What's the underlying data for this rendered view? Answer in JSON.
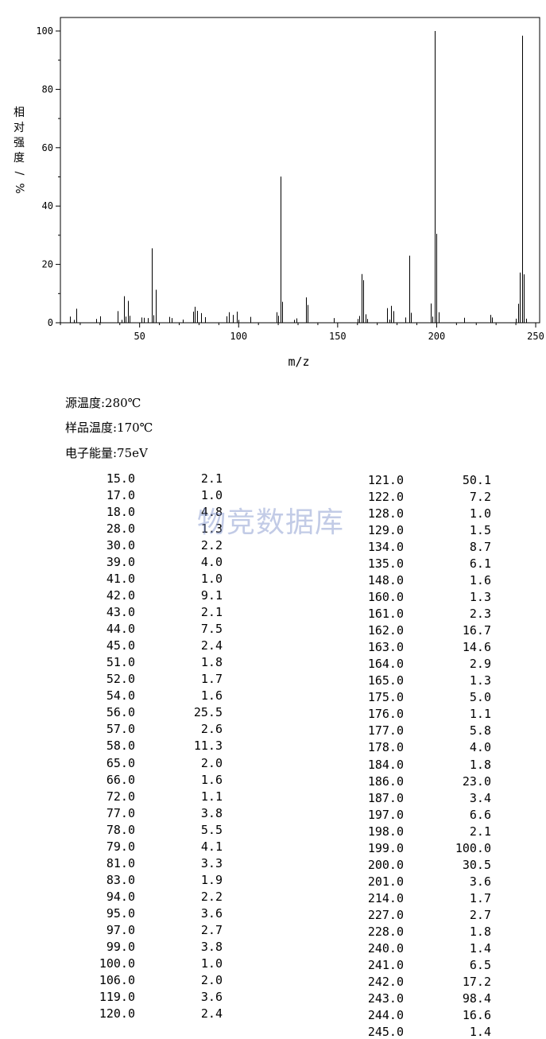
{
  "chart_data": {
    "type": "bar",
    "xlabel": "m/z",
    "ylabel": "相对强度/%",
    "xlim": [
      10,
      252
    ],
    "ylim": [
      0,
      105
    ],
    "xticks": [
      50,
      100,
      150,
      200,
      250
    ],
    "yticks": [
      0,
      20,
      40,
      60,
      80,
      100
    ],
    "x": [
      15,
      17,
      18,
      28,
      30,
      39,
      41,
      42,
      43,
      44,
      45,
      51,
      52,
      54,
      56,
      57,
      58,
      65,
      66,
      72,
      77,
      78,
      79,
      81,
      83,
      94,
      95,
      97,
      99,
      100,
      106,
      119,
      120,
      121,
      122,
      128,
      129,
      134,
      135,
      148,
      160,
      161,
      162,
      163,
      164,
      165,
      175,
      176,
      177,
      178,
      184,
      186,
      187,
      197,
      198,
      199,
      200,
      201,
      214,
      227,
      228,
      240,
      241,
      242,
      243,
      244,
      245
    ],
    "values": [
      2.1,
      1.0,
      4.8,
      1.3,
      2.2,
      4.0,
      1.0,
      9.1,
      2.1,
      7.5,
      2.4,
      1.8,
      1.7,
      1.6,
      25.5,
      2.6,
      11.3,
      2.0,
      1.6,
      1.1,
      3.8,
      5.5,
      4.1,
      3.3,
      1.9,
      2.2,
      3.6,
      2.7,
      3.8,
      1.0,
      2.0,
      3.6,
      2.4,
      50.1,
      7.2,
      1.0,
      1.5,
      8.7,
      6.1,
      1.6,
      1.3,
      2.3,
      16.7,
      14.6,
      2.9,
      1.3,
      5.0,
      1.1,
      5.8,
      4.0,
      1.8,
      23.0,
      3.4,
      6.6,
      2.1,
      100.0,
      30.5,
      3.6,
      1.7,
      2.7,
      1.8,
      1.4,
      6.5,
      17.2,
      98.4,
      16.6,
      1.4
    ],
    "color": "#000000"
  },
  "conditions": [
    "源温度:280℃",
    "样品温度:170℃",
    "电子能量:75eV"
  ],
  "watermark": "物竞数据库",
  "table": {
    "left": [
      [
        "15.0",
        "2.1"
      ],
      [
        "17.0",
        "1.0"
      ],
      [
        "18.0",
        "4.8"
      ],
      [
        "28.0",
        "1.3"
      ],
      [
        "30.0",
        "2.2"
      ],
      [
        "39.0",
        "4.0"
      ],
      [
        "41.0",
        "1.0"
      ],
      [
        "42.0",
        "9.1"
      ],
      [
        "43.0",
        "2.1"
      ],
      [
        "44.0",
        "7.5"
      ],
      [
        "45.0",
        "2.4"
      ],
      [
        "51.0",
        "1.8"
      ],
      [
        "52.0",
        "1.7"
      ],
      [
        "54.0",
        "1.6"
      ],
      [
        "56.0",
        "25.5"
      ],
      [
        "57.0",
        "2.6"
      ],
      [
        "58.0",
        "11.3"
      ],
      [
        "65.0",
        "2.0"
      ],
      [
        "66.0",
        "1.6"
      ],
      [
        "72.0",
        "1.1"
      ],
      [
        "77.0",
        "3.8"
      ],
      [
        "78.0",
        "5.5"
      ],
      [
        "79.0",
        "4.1"
      ],
      [
        "81.0",
        "3.3"
      ],
      [
        "83.0",
        "1.9"
      ],
      [
        "94.0",
        "2.2"
      ],
      [
        "95.0",
        "3.6"
      ],
      [
        "97.0",
        "2.7"
      ],
      [
        "99.0",
        "3.8"
      ],
      [
        "100.0",
        "1.0"
      ],
      [
        "106.0",
        "2.0"
      ],
      [
        "119.0",
        "3.6"
      ],
      [
        "120.0",
        "2.4"
      ]
    ],
    "right": [
      [
        "121.0",
        "50.1"
      ],
      [
        "122.0",
        "7.2"
      ],
      [
        "128.0",
        "1.0"
      ],
      [
        "129.0",
        "1.5"
      ],
      [
        "134.0",
        "8.7"
      ],
      [
        "135.0",
        "6.1"
      ],
      [
        "148.0",
        "1.6"
      ],
      [
        "160.0",
        "1.3"
      ],
      [
        "161.0",
        "2.3"
      ],
      [
        "162.0",
        "16.7"
      ],
      [
        "163.0",
        "14.6"
      ],
      [
        "164.0",
        "2.9"
      ],
      [
        "165.0",
        "1.3"
      ],
      [
        "175.0",
        "5.0"
      ],
      [
        "176.0",
        "1.1"
      ],
      [
        "177.0",
        "5.8"
      ],
      [
        "178.0",
        "4.0"
      ],
      [
        "184.0",
        "1.8"
      ],
      [
        "186.0",
        "23.0"
      ],
      [
        "187.0",
        "3.4"
      ],
      [
        "197.0",
        "6.6"
      ],
      [
        "198.0",
        "2.1"
      ],
      [
        "199.0",
        "100.0"
      ],
      [
        "200.0",
        "30.5"
      ],
      [
        "201.0",
        "3.6"
      ],
      [
        "214.0",
        "1.7"
      ],
      [
        "227.0",
        "2.7"
      ],
      [
        "228.0",
        "1.8"
      ],
      [
        "240.0",
        "1.4"
      ],
      [
        "241.0",
        "6.5"
      ],
      [
        "242.0",
        "17.2"
      ],
      [
        "243.0",
        "98.4"
      ],
      [
        "244.0",
        "16.6"
      ],
      [
        "245.0",
        "1.4"
      ]
    ]
  }
}
